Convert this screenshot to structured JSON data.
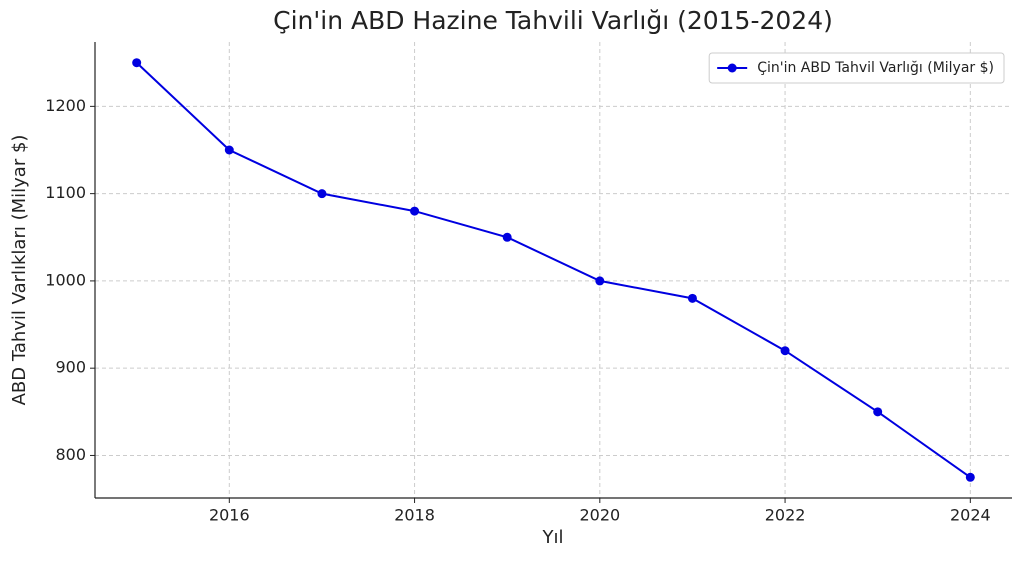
{
  "chart_data": {
    "type": "line",
    "title": "Çin'in ABD Hazine Tahvili Varlığı (2015-2024)",
    "xlabel": "Yıl",
    "ylabel": "ABD Tahvil Varlıkları (Milyar $)",
    "x": [
      2015,
      2016,
      2017,
      2018,
      2019,
      2020,
      2021,
      2022,
      2023,
      2024
    ],
    "series": [
      {
        "name": "Çin'in ABD Tahvil Varlığı (Milyar $)",
        "color": "#0000e0",
        "values": [
          1250,
          1150,
          1100,
          1080,
          1050,
          1000,
          980,
          920,
          850,
          775
        ]
      }
    ],
    "xlim": [
      2014.55,
      2024.45
    ],
    "xticks": [
      2016,
      2018,
      2020,
      2022,
      2024
    ],
    "ylim": [
      751.25,
      1273.75
    ],
    "yticks": [
      800,
      900,
      1000,
      1100,
      1200
    ],
    "grid": true,
    "legend": "upper right"
  }
}
